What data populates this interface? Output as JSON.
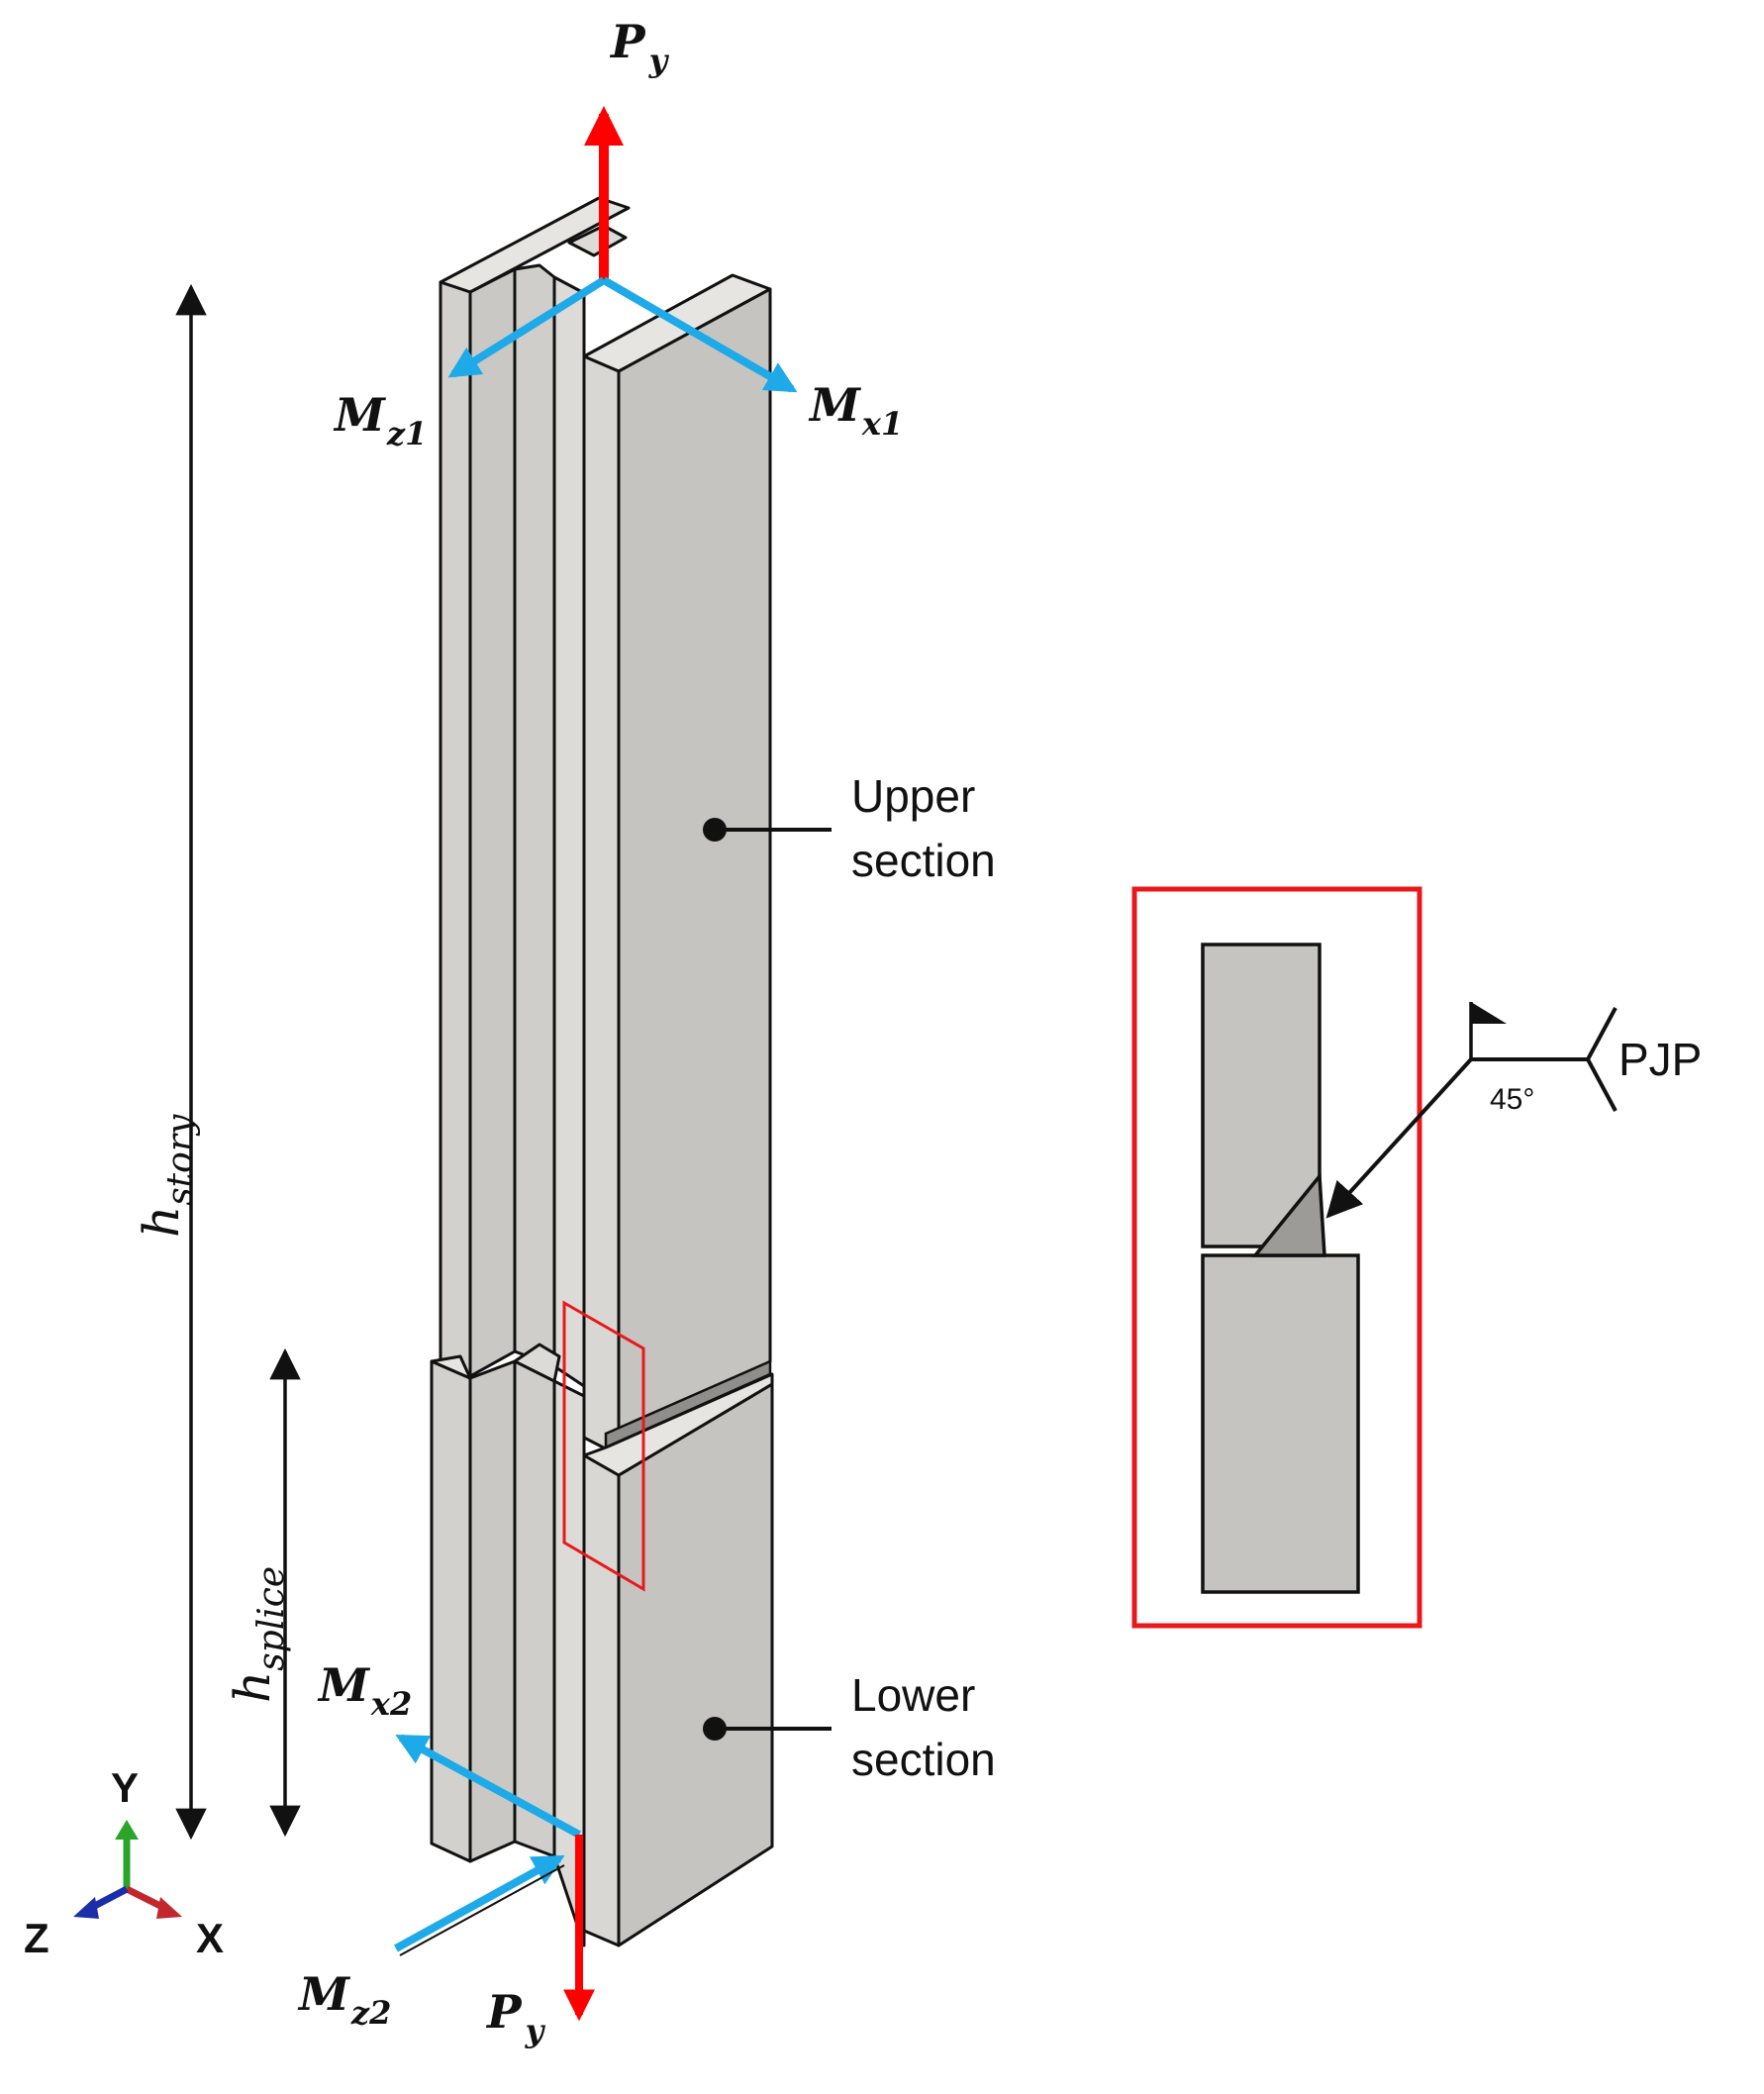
{
  "loads": {
    "py_top": {
      "main": "P",
      "sub": "y"
    },
    "mz1": {
      "main": "M",
      "sub": "z1"
    },
    "mx1": {
      "main": "M",
      "sub": "x1"
    },
    "mx2": {
      "main": "M",
      "sub": "x2"
    },
    "mz2": {
      "main": "M",
      "sub": "z2"
    },
    "py_bottom": {
      "main": "P",
      "sub": "y"
    }
  },
  "dimensions": {
    "story": {
      "main": "h",
      "sub": "story"
    },
    "splice": {
      "main": "h",
      "sub": "splice"
    }
  },
  "callouts": {
    "upper": [
      "Upper",
      "section"
    ],
    "lower": [
      "Lower",
      "section"
    ]
  },
  "weld_detail": {
    "type": "PJP",
    "angle": "45°"
  },
  "triad": {
    "x": "X",
    "y": "Y",
    "z": "Z"
  },
  "colors": {
    "axial_load": "#ff0000",
    "moment": "#1ea9e8",
    "steel": "#c5c4c0",
    "steel_light": "#dad9d5",
    "detail_frame": "#e8191c",
    "axis_x": "#c1272d",
    "axis_y": "#2aa52a",
    "axis_z": "#1b2ea8"
  }
}
